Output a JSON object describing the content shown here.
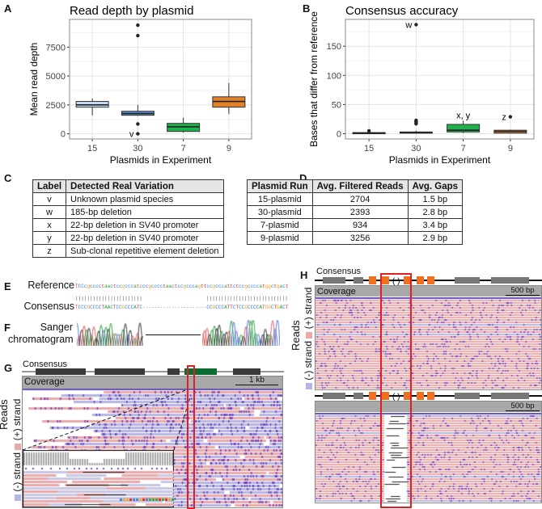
{
  "panels": {
    "a": "A",
    "b": "B",
    "c": "C",
    "d": "D",
    "e": "E",
    "f": "F",
    "g": "G",
    "h": "H"
  },
  "chart_data": [
    {
      "type": "box",
      "title": "Read depth by plasmid",
      "xlabel": "Plasmids in Experiment",
      "ylabel": "Mean read depth",
      "ylim": [
        -450,
        9900
      ],
      "yticks": [
        0,
        2500,
        5000,
        7500
      ],
      "ytick_labels": [
        "0",
        "2500",
        "5000",
        "7500"
      ],
      "grid": true,
      "categories": [
        "15",
        "30",
        "7",
        "9"
      ],
      "series": [
        {
          "category": "15",
          "color": "#c6d9ef",
          "whisker_low": 1600,
          "q1": 2300,
          "median": 2500,
          "q3": 2800,
          "whisker_high": 3050,
          "outliers": []
        },
        {
          "category": "30",
          "color": "#5b8fc9",
          "whisker_low": 1550,
          "q1": 1600,
          "median": 1750,
          "q3": 1950,
          "whisker_high": 2500,
          "outliers": [
            {
              "value": 9400,
              "label": ""
            },
            {
              "value": 8500,
              "label": ""
            },
            {
              "value": 850,
              "label": ""
            },
            {
              "value": 0,
              "label": "v"
            }
          ]
        },
        {
          "category": "7",
          "color": "#1db04b",
          "whisker_low": 100,
          "q1": 200,
          "median": 600,
          "q3": 900,
          "whisker_high": 1400,
          "outliers": []
        },
        {
          "category": "9",
          "color": "#e3802a",
          "whisker_low": 1700,
          "q1": 2300,
          "median": 2800,
          "q3": 3200,
          "whisker_high": 4400,
          "outliers": []
        }
      ]
    },
    {
      "type": "box",
      "title": "Consensus accuracy",
      "xlabel": "Plasmids in Experiment",
      "ylabel": "Bases that differ from reference",
      "ylim": [
        -9,
        196
      ],
      "yticks": [
        0,
        50,
        100,
        150
      ],
      "ytick_labels": [
        "0",
        "50",
        "100",
        "150"
      ],
      "grid": true,
      "categories": [
        "15",
        "30",
        "7",
        "9"
      ],
      "series": [
        {
          "category": "15",
          "color": "#c6d9ef",
          "whisker_low": 0,
          "q1": 0,
          "median": 1,
          "q3": 2,
          "whisker_high": 3,
          "outliers": [
            {
              "value": 5,
              "label": ""
            }
          ]
        },
        {
          "category": "30",
          "color": "#5b8fc9",
          "whisker_low": 0,
          "q1": 1,
          "median": 2,
          "q3": 3,
          "whisker_high": 5,
          "outliers": [
            {
              "value": 17,
              "label": ""
            },
            {
              "value": 19,
              "label": ""
            },
            {
              "value": 21,
              "label": ""
            },
            {
              "value": 23,
              "label": ""
            },
            {
              "value": 187,
              "label": "w"
            }
          ]
        },
        {
          "category": "7",
          "color": "#1db04b",
          "whisker_low": 1,
          "q1": 3,
          "median": 6,
          "q3": 16,
          "whisker_high": 22,
          "outliers": [],
          "annotation": "x, y"
        },
        {
          "category": "9",
          "color": "#e3802a",
          "whisker_low": 0,
          "q1": 1,
          "median": 4,
          "q3": 6,
          "whisker_high": 7,
          "outliers": [
            {
              "value": 29,
              "label": "z"
            }
          ]
        }
      ]
    }
  ],
  "table_c": {
    "headers": [
      "Label",
      "Detected Real Variation"
    ],
    "rows": [
      [
        "v",
        "Unknown plasmid species"
      ],
      [
        "w",
        "185-bp deletion"
      ],
      [
        "x",
        "22-bp deletion in SV40 promoter"
      ],
      [
        "y",
        "22-bp deletion in SV40 promoter"
      ],
      [
        "z",
        "Sub-clonal repetitive element deletion"
      ]
    ]
  },
  "table_d": {
    "headers": [
      "Plasmid Run",
      "Avg. Filtered Reads",
      "Avg. Gaps"
    ],
    "rows": [
      [
        "15-plasmid",
        "2704",
        "1.5 bp"
      ],
      [
        "30-plasmid",
        "2393",
        "2.8 bp"
      ],
      [
        "7-plasmid",
        "934",
        "3.4 bp"
      ],
      [
        "9-plasmid",
        "3256",
        "2.9 bp"
      ]
    ]
  },
  "alignment": {
    "reference_label": "Reference",
    "consensus_label": "Consensus",
    "reference_seq": "TCCcgcccctaactccgcccatcccgcccctaactccgcccagttccgcccattctccgccccatggctgact",
    "consensus_seq": "TCCCGCCCCTAACTCCGCCCATC----------------------CCGCCCATTCTCCGCCCCATGGCTGACT",
    "match_bars": "|||||||||||||||||||||||                      ||||||||||||||||||||||||||||",
    "sanger_label_1": "Sanger",
    "sanger_label_2": "chromatogram",
    "base_colors": {
      "a": "#2ca02c",
      "c": "#3a7bd5",
      "g": "#f0a020",
      "t": "#d83030",
      "-": "#888888"
    }
  },
  "igv_g": {
    "consensus": "Consensus",
    "coverage": "Coverage",
    "scale": "1 kb",
    "reads": "Reads",
    "plus": "(+) strand",
    "minus": "(-) strand"
  },
  "igv_h": {
    "consensus": "Consensus",
    "coverage": "Coverage",
    "scale_top": "500 bp",
    "scale_bottom": "500 bp",
    "reads": "Reads",
    "plus": "(+) strand",
    "minus": "(-) strand"
  },
  "colors": {
    "plus_strand": "#eaa9a9",
    "minus_strand": "#b5b5e3",
    "mismatch": "#6a3fc0",
    "highlight": "#e02020",
    "feature_orange": "#f07020",
    "feature_green": "#0a6b30",
    "feature_grey": "#777777"
  }
}
